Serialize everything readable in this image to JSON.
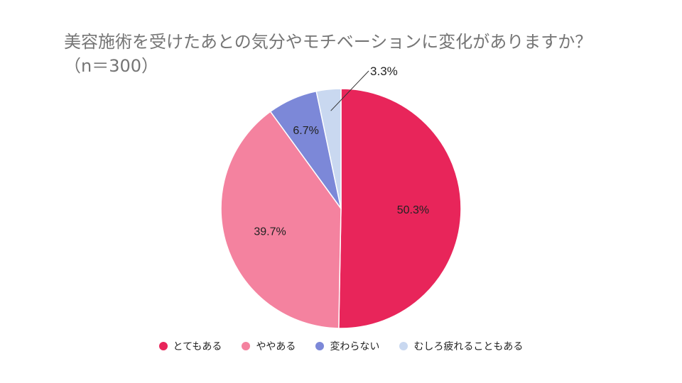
{
  "chart_data": {
    "type": "pie",
    "title": "美容施術を受けたあとの気分やモチベーションに変化がありますか？（n＝300）",
    "categories": [
      "とてもある",
      "ややある",
      "変わらない",
      "むしろ疲れることもある"
    ],
    "values": [
      50.3,
      39.7,
      6.7,
      3.3
    ],
    "labels": [
      "50.3%",
      "39.7%",
      "6.7%",
      "3.3%"
    ],
    "colors": [
      "#e8255a",
      "#f4829f",
      "#7c88d8",
      "#c9d8f0"
    ],
    "legend_position": "bottom",
    "start_angle_deg": 0,
    "direction": "clockwise"
  }
}
